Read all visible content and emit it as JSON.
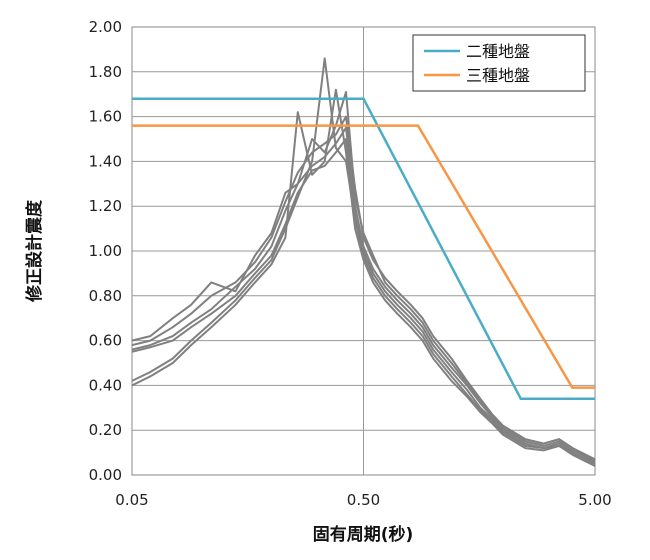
{
  "chart_data": {
    "type": "line",
    "title": "",
    "xlabel": "固有周期(秒)",
    "ylabel": "修正設計震度",
    "x_scale": "log",
    "xlim": [
      0.05,
      5.0
    ],
    "ylim": [
      0.0,
      2.0
    ],
    "x_ticks": [
      0.05,
      0.5,
      5.0
    ],
    "x_tick_labels": [
      "0.05",
      "0.50",
      "5.00"
    ],
    "y_ticks": [
      0.0,
      0.2,
      0.4,
      0.6,
      0.8,
      1.0,
      1.2,
      1.4,
      1.6,
      1.8,
      2.0
    ],
    "y_tick_labels": [
      "0.00",
      "0.20",
      "0.40",
      "0.60",
      "0.80",
      "1.00",
      "1.20",
      "1.40",
      "1.60",
      "1.80",
      "2.00"
    ],
    "grid": "horizontal and vertical at ticks",
    "legend_position": "top-right",
    "series": [
      {
        "name": "二種地盤",
        "color": "#4bacc6",
        "points": [
          [
            0.05,
            1.68
          ],
          [
            0.5,
            1.68
          ],
          [
            2.39,
            0.34
          ],
          [
            5.0,
            0.34
          ]
        ]
      },
      {
        "name": "三種地盤",
        "color": "#f79646",
        "points": [
          [
            0.05,
            1.56
          ],
          [
            0.86,
            1.56
          ],
          [
            3.99,
            0.39
          ],
          [
            5.0,
            0.39
          ]
        ]
      }
    ],
    "response_curves": {
      "color": "#808080",
      "curves": [
        {
          "points": [
            [
              0.05,
              0.56
            ],
            [
              0.06,
              0.58
            ],
            [
              0.075,
              0.62
            ],
            [
              0.09,
              0.68
            ],
            [
              0.11,
              0.74
            ],
            [
              0.14,
              0.84
            ],
            [
              0.17,
              0.92
            ],
            [
              0.2,
              1.02
            ],
            [
              0.23,
              1.18
            ],
            [
              0.26,
              1.3
            ],
            [
              0.3,
              1.38
            ],
            [
              0.34,
              1.42
            ],
            [
              0.38,
              1.48
            ],
            [
              0.42,
              1.55
            ],
            [
              0.46,
              1.2
            ],
            [
              0.5,
              1.02
            ],
            [
              0.55,
              0.92
            ],
            [
              0.62,
              0.84
            ],
            [
              0.7,
              0.78
            ],
            [
              0.8,
              0.72
            ],
            [
              0.9,
              0.66
            ],
            [
              1.0,
              0.58
            ],
            [
              1.2,
              0.48
            ],
            [
              1.4,
              0.4
            ],
            [
              1.6,
              0.32
            ],
            [
              1.8,
              0.26
            ],
            [
              2.0,
              0.21
            ],
            [
              2.5,
              0.15
            ],
            [
              3.0,
              0.13
            ],
            [
              3.5,
              0.15
            ],
            [
              4.0,
              0.11
            ],
            [
              5.0,
              0.06
            ]
          ]
        },
        {
          "points": [
            [
              0.05,
              0.58
            ],
            [
              0.06,
              0.6
            ],
            [
              0.075,
              0.66
            ],
            [
              0.09,
              0.72
            ],
            [
              0.11,
              0.8
            ],
            [
              0.14,
              0.86
            ],
            [
              0.17,
              0.95
            ],
            [
              0.2,
              1.06
            ],
            [
              0.23,
              1.22
            ],
            [
              0.26,
              1.35
            ],
            [
              0.3,
              1.44
            ],
            [
              0.34,
              1.48
            ],
            [
              0.38,
              1.52
            ],
            [
              0.42,
              1.6
            ],
            [
              0.46,
              1.28
            ],
            [
              0.5,
              1.06
            ],
            [
              0.55,
              0.96
            ],
            [
              0.62,
              0.88
            ],
            [
              0.7,
              0.82
            ],
            [
              0.8,
              0.76
            ],
            [
              0.9,
              0.7
            ],
            [
              1.0,
              0.62
            ],
            [
              1.2,
              0.52
            ],
            [
              1.4,
              0.42
            ],
            [
              1.6,
              0.34
            ],
            [
              1.8,
              0.27
            ],
            [
              2.0,
              0.22
            ],
            [
              2.5,
              0.16
            ],
            [
              3.0,
              0.14
            ],
            [
              3.5,
              0.16
            ],
            [
              4.0,
              0.12
            ],
            [
              5.0,
              0.07
            ]
          ]
        },
        {
          "points": [
            [
              0.05,
              0.55
            ],
            [
              0.06,
              0.57
            ],
            [
              0.075,
              0.6
            ],
            [
              0.09,
              0.66
            ],
            [
              0.11,
              0.72
            ],
            [
              0.14,
              0.8
            ],
            [
              0.17,
              0.9
            ],
            [
              0.2,
              0.98
            ],
            [
              0.23,
              1.12
            ],
            [
              0.26,
              1.26
            ],
            [
              0.3,
              1.36
            ],
            [
              0.34,
              1.38
            ],
            [
              0.38,
              1.44
            ],
            [
              0.42,
              1.5
            ],
            [
              0.46,
              1.16
            ],
            [
              0.5,
              1.0
            ],
            [
              0.55,
              0.9
            ],
            [
              0.62,
              0.82
            ],
            [
              0.7,
              0.76
            ],
            [
              0.8,
              0.7
            ],
            [
              0.9,
              0.64
            ],
            [
              1.0,
              0.56
            ],
            [
              1.2,
              0.46
            ],
            [
              1.4,
              0.38
            ],
            [
              1.6,
              0.3
            ],
            [
              1.8,
              0.25
            ],
            [
              2.0,
              0.2
            ],
            [
              2.5,
              0.14
            ],
            [
              3.0,
              0.12
            ],
            [
              3.5,
              0.14
            ],
            [
              4.0,
              0.1
            ],
            [
              5.0,
              0.05
            ]
          ]
        },
        {
          "points": [
            [
              0.05,
              0.42
            ],
            [
              0.06,
              0.46
            ],
            [
              0.075,
              0.52
            ],
            [
              0.09,
              0.6
            ],
            [
              0.11,
              0.68
            ],
            [
              0.14,
              0.78
            ],
            [
              0.17,
              0.88
            ],
            [
              0.2,
              0.96
            ],
            [
              0.23,
              1.1
            ],
            [
              0.26,
              1.24
            ],
            [
              0.3,
              1.4
            ],
            [
              0.34,
              1.86
            ],
            [
              0.38,
              1.46
            ],
            [
              0.42,
              1.4
            ],
            [
              0.46,
              1.14
            ],
            [
              0.5,
              0.98
            ],
            [
              0.55,
              0.88
            ],
            [
              0.62,
              0.8
            ],
            [
              0.7,
              0.74
            ],
            [
              0.8,
              0.68
            ],
            [
              0.9,
              0.62
            ],
            [
              1.0,
              0.54
            ],
            [
              1.2,
              0.44
            ],
            [
              1.4,
              0.36
            ],
            [
              1.6,
              0.29
            ],
            [
              1.8,
              0.24
            ],
            [
              2.0,
              0.19
            ],
            [
              2.5,
              0.13
            ],
            [
              3.0,
              0.12
            ],
            [
              3.5,
              0.13
            ],
            [
              4.0,
              0.1
            ],
            [
              5.0,
              0.05
            ]
          ]
        },
        {
          "points": [
            [
              0.05,
              0.4
            ],
            [
              0.06,
              0.44
            ],
            [
              0.075,
              0.5
            ],
            [
              0.09,
              0.58
            ],
            [
              0.11,
              0.66
            ],
            [
              0.14,
              0.76
            ],
            [
              0.17,
              0.86
            ],
            [
              0.2,
              0.94
            ],
            [
              0.23,
              1.06
            ],
            [
              0.26,
              1.62
            ],
            [
              0.3,
              1.34
            ],
            [
              0.34,
              1.4
            ],
            [
              0.38,
              1.72
            ],
            [
              0.42,
              1.44
            ],
            [
              0.46,
              1.1
            ],
            [
              0.5,
              0.96
            ],
            [
              0.55,
              0.86
            ],
            [
              0.62,
              0.78
            ],
            [
              0.7,
              0.72
            ],
            [
              0.8,
              0.66
            ],
            [
              0.9,
              0.6
            ],
            [
              1.0,
              0.52
            ],
            [
              1.2,
              0.42
            ],
            [
              1.4,
              0.35
            ],
            [
              1.6,
              0.28
            ],
            [
              1.8,
              0.23
            ],
            [
              2.0,
              0.18
            ],
            [
              2.5,
              0.12
            ],
            [
              3.0,
              0.11
            ],
            [
              3.5,
              0.13
            ],
            [
              4.0,
              0.09
            ],
            [
              5.0,
              0.04
            ]
          ]
        },
        {
          "points": [
            [
              0.05,
              0.6
            ],
            [
              0.06,
              0.62
            ],
            [
              0.075,
              0.7
            ],
            [
              0.09,
              0.76
            ],
            [
              0.11,
              0.86
            ],
            [
              0.14,
              0.82
            ],
            [
              0.17,
              0.98
            ],
            [
              0.2,
              1.08
            ],
            [
              0.23,
              1.26
            ],
            [
              0.26,
              1.3
            ],
            [
              0.3,
              1.5
            ],
            [
              0.34,
              1.44
            ],
            [
              0.38,
              1.56
            ],
            [
              0.42,
              1.71
            ],
            [
              0.46,
              1.24
            ],
            [
              0.5,
              1.08
            ],
            [
              0.55,
              0.98
            ],
            [
              0.62,
              0.86
            ],
            [
              0.7,
              0.8
            ],
            [
              0.8,
              0.74
            ],
            [
              0.9,
              0.68
            ],
            [
              1.0,
              0.6
            ],
            [
              1.2,
              0.5
            ],
            [
              1.4,
              0.41
            ],
            [
              1.6,
              0.33
            ],
            [
              1.8,
              0.27
            ],
            [
              2.0,
              0.22
            ],
            [
              2.5,
              0.16
            ],
            [
              3.0,
              0.14
            ],
            [
              3.5,
              0.16
            ],
            [
              4.0,
              0.12
            ],
            [
              5.0,
              0.06
            ]
          ]
        }
      ]
    },
    "legend": [
      "二種地盤",
      "三種地盤"
    ]
  }
}
